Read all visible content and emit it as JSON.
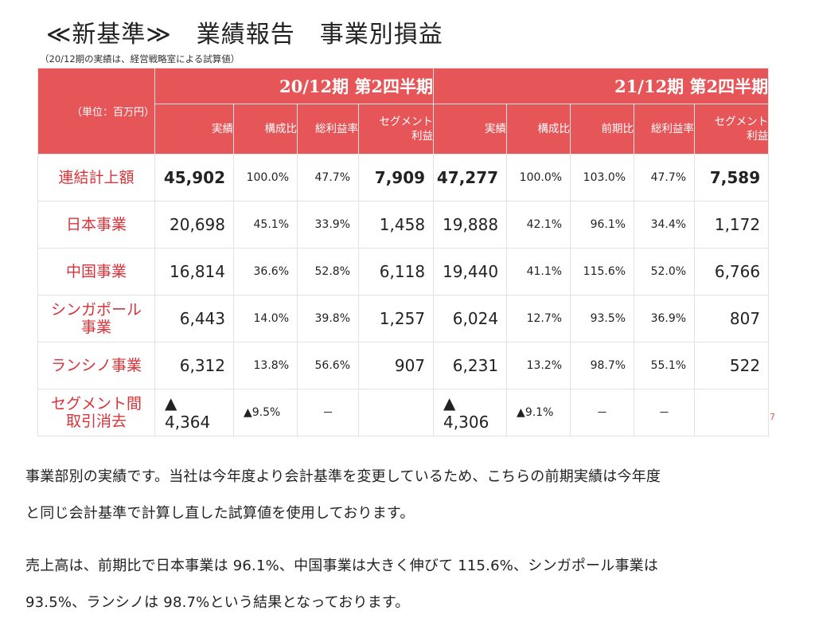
{
  "slide": {
    "title": "≪新基準≫　業績報告　事業別損益",
    "note": "（20/12期の実績は、経営戦略室による試算値）",
    "unit": "（単位：百万円）",
    "page_number": "7",
    "period_prev": "20/12期 第2四半期",
    "period_curr": "21/12期 第2四半期",
    "cols_prev": [
      "実績",
      "構成比",
      "総利益率",
      "セグメント\n利益"
    ],
    "cols_curr": [
      "実績",
      "構成比",
      "前期比",
      "総利益率",
      "セグメント\n利益"
    ],
    "rows": [
      {
        "label": "連結計上額",
        "prev": [
          "45,902",
          "100.0%",
          "47.7%",
          "7,909"
        ],
        "curr": [
          "47,277",
          "100.0%",
          "103.0%",
          "47.7%",
          "7,589"
        ]
      },
      {
        "label": "日本事業",
        "prev": [
          "20,698",
          "45.1%",
          "33.9%",
          "1,458"
        ],
        "curr": [
          "19,888",
          "42.1%",
          "96.1%",
          "34.4%",
          "1,172"
        ]
      },
      {
        "label": "中国事業",
        "prev": [
          "16,814",
          "36.6%",
          "52.8%",
          "6,118"
        ],
        "curr": [
          "19,440",
          "41.1%",
          "115.6%",
          "52.0%",
          "6,766"
        ]
      },
      {
        "label": "シンガポール\n事業",
        "prev": [
          "6,443",
          "14.0%",
          "39.8%",
          "1,257"
        ],
        "curr": [
          "6,024",
          "12.7%",
          "93.5%",
          "36.9%",
          "807"
        ]
      },
      {
        "label": "ランシノ事業",
        "prev": [
          "6,312",
          "13.8%",
          "56.6%",
          "907"
        ],
        "curr": [
          "6,231",
          "13.2%",
          "98.7%",
          "55.1%",
          "522"
        ]
      },
      {
        "label": "セグメント間\n取引消去",
        "prev": [
          "▲ 4,364",
          "▲9.5%",
          "－",
          ""
        ],
        "curr": [
          "▲ 4,306",
          "▲9.1%",
          "－",
          "－",
          ""
        ]
      }
    ]
  },
  "article": {
    "p1_line1": "事業部別の実績です。当社は今年度より会計基準を変更しているため、こちらの前期実績は今年度",
    "p1_line2": "と同じ会計基準で計算し直した試算値を使用しております。",
    "p2_line1": "売上高は、前期比で日本事業は 96.1%、中国事業は大きく伸びて 115.6%、シンガポール事業は",
    "p2_line2": "93.5%、ランシノは 98.7%という結果となっております。"
  }
}
